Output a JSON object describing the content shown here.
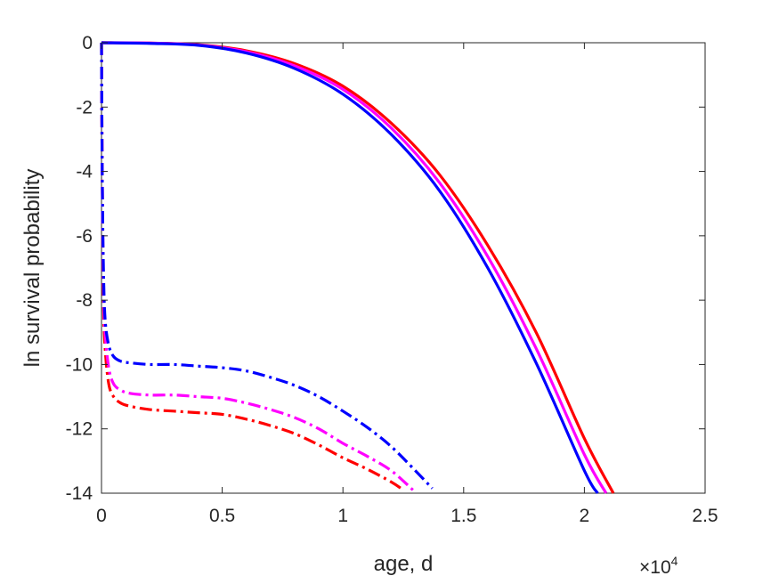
{
  "chart_data": {
    "type": "line",
    "title": "",
    "xlabel": "age, d",
    "ylabel": "ln survival probability",
    "x_exponent": {
      "base": "×10",
      "power": "4"
    },
    "xlim": [
      0,
      25000
    ],
    "ylim": [
      -14,
      0
    ],
    "xticks": [
      0,
      5000,
      10000,
      15000,
      20000,
      25000
    ],
    "xtick_labels": [
      "0",
      "0.5",
      "1",
      "1.5",
      "2",
      "2.5"
    ],
    "yticks": [
      0,
      -2,
      -4,
      -6,
      -8,
      -10,
      -12,
      -14
    ],
    "ytick_labels": [
      "0",
      "-2",
      "-4",
      "-6",
      "-8",
      "-10",
      "-12",
      "-14"
    ],
    "grid": false,
    "legend": "none",
    "series": [
      {
        "color": "#ff0000",
        "style": "solid",
        "x": [
          0,
          2000,
          4000,
          6000,
          8000,
          10000,
          12000,
          14000,
          16000,
          18000,
          20000,
          21200
        ],
        "y": [
          0,
          -0.01,
          -0.06,
          -0.25,
          -0.65,
          -1.35,
          -2.5,
          -4.1,
          -6.3,
          -9.0,
          -12.3,
          -14
        ]
      },
      {
        "color": "#ff00ff",
        "style": "solid",
        "x": [
          0,
          2000,
          4000,
          6000,
          8000,
          10000,
          12000,
          14000,
          16000,
          18000,
          20000,
          20900
        ],
        "y": [
          0,
          -0.01,
          -0.07,
          -0.28,
          -0.72,
          -1.45,
          -2.65,
          -4.35,
          -6.65,
          -9.5,
          -12.8,
          -14
        ]
      },
      {
        "color": "#0000ff",
        "style": "solid",
        "x": [
          0,
          2000,
          4000,
          6000,
          8000,
          10000,
          12000,
          14000,
          16000,
          18000,
          20000,
          20550
        ],
        "y": [
          0,
          -0.02,
          -0.08,
          -0.32,
          -0.8,
          -1.6,
          -2.85,
          -4.6,
          -7.0,
          -9.95,
          -13.3,
          -14
        ]
      },
      {
        "color": "#ff0000",
        "style": "dashdot",
        "x": [
          0,
          30,
          80,
          150,
          300,
          500,
          800,
          1200,
          2000,
          3000,
          4000,
          5000,
          6000,
          7000,
          8000,
          9000,
          10000,
          11000,
          12000,
          12500
        ],
        "y": [
          0,
          -4.0,
          -8.0,
          -9.5,
          -10.6,
          -11.0,
          -11.2,
          -11.3,
          -11.4,
          -11.45,
          -11.5,
          -11.55,
          -11.7,
          -11.9,
          -12.15,
          -12.5,
          -12.9,
          -13.25,
          -13.65,
          -13.9
        ]
      },
      {
        "color": "#ff00ff",
        "style": "dashdot",
        "x": [
          0,
          30,
          80,
          150,
          300,
          500,
          800,
          1200,
          2000,
          3000,
          4000,
          5000,
          6000,
          7000,
          8000,
          9000,
          10000,
          11000,
          12000,
          12900
        ],
        "y": [
          0,
          -4.0,
          -7.5,
          -9.0,
          -10.1,
          -10.6,
          -10.8,
          -10.9,
          -10.95,
          -10.95,
          -11.0,
          -11.05,
          -11.2,
          -11.4,
          -11.65,
          -12.0,
          -12.45,
          -12.85,
          -13.3,
          -13.9
        ]
      },
      {
        "color": "#0000ff",
        "style": "dashdot",
        "x": [
          0,
          30,
          80,
          150,
          300,
          500,
          800,
          1200,
          2000,
          3000,
          4000,
          5000,
          6000,
          7000,
          8000,
          9000,
          10000,
          11000,
          12000,
          13000,
          13700
        ],
        "y": [
          0,
          -4.0,
          -7.0,
          -8.6,
          -9.4,
          -9.75,
          -9.9,
          -9.95,
          -10.0,
          -10.0,
          -10.05,
          -10.1,
          -10.2,
          -10.4,
          -10.65,
          -11.0,
          -11.45,
          -11.95,
          -12.55,
          -13.3,
          -13.85
        ]
      }
    ]
  }
}
